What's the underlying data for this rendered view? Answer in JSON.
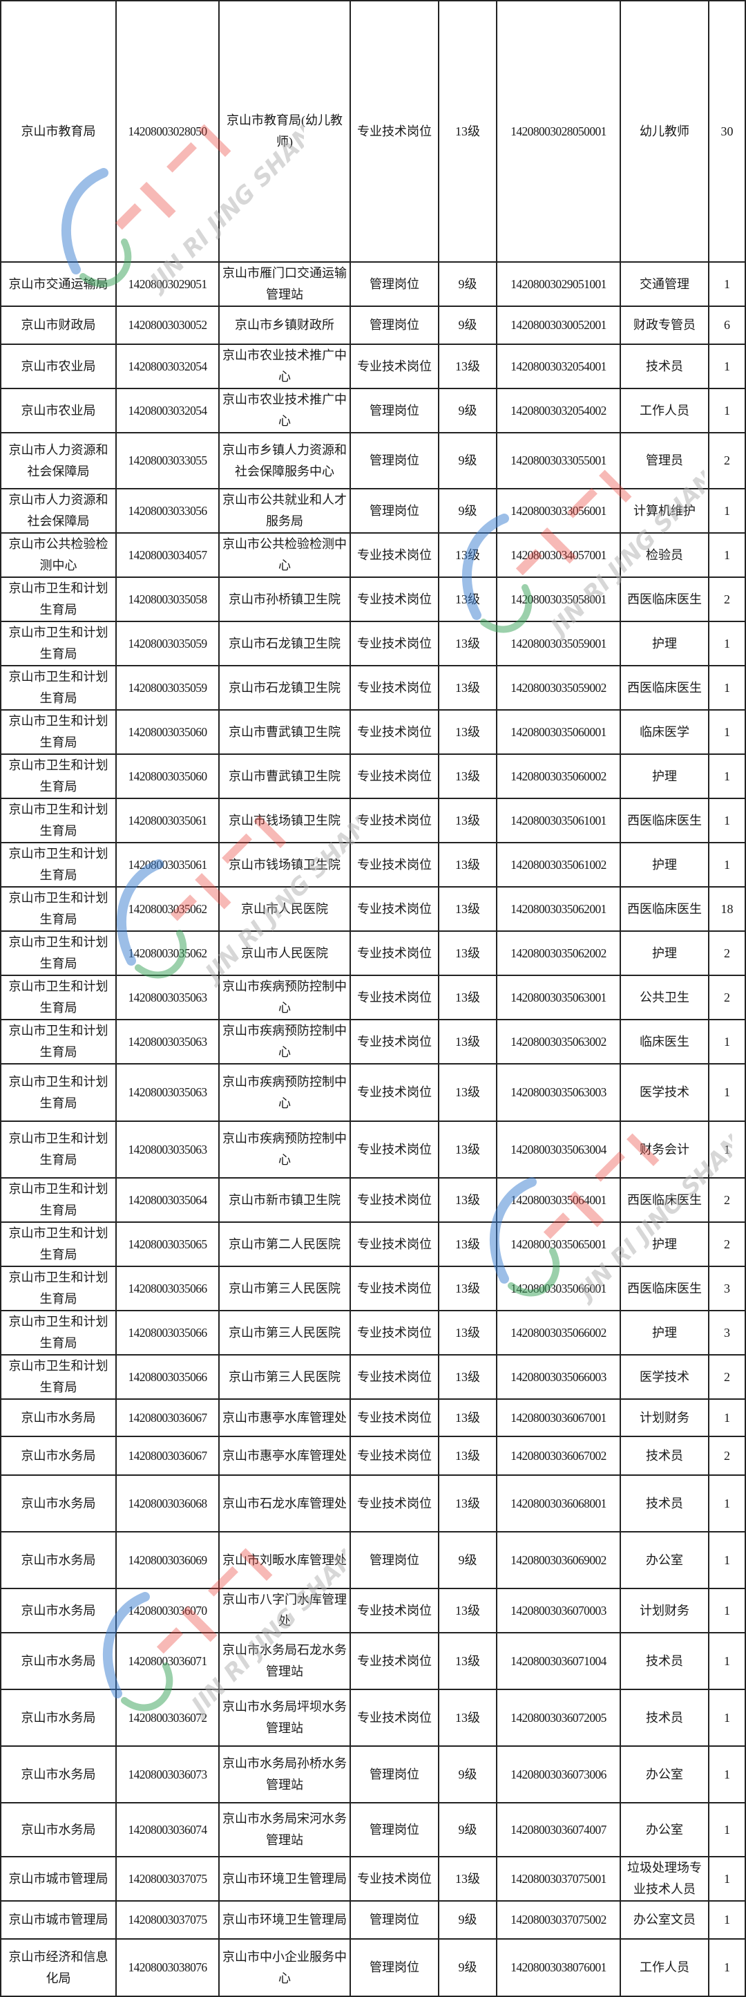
{
  "watermark": {
    "text": "JIN RI JING SHAN",
    "brand_red": "#e8453c",
    "brand_blue": "#3b7fd1",
    "brand_green": "#3aa35a"
  },
  "rows": [
    [
      "京山市教育局",
      "14208003028050",
      "京山市教育局(幼儿教师)",
      "专业技术岗位",
      "13级",
      "14208003028050001",
      "幼儿教师",
      "30"
    ],
    [
      "京山市交通运输局",
      "14208003029051",
      "京山市雁门口交通运输管理站",
      "管理岗位",
      "9级",
      "14208003029051001",
      "交通管理",
      "1"
    ],
    [
      "京山市财政局",
      "14208003030052",
      "京山市乡镇财政所",
      "管理岗位",
      "9级",
      "14208003030052001",
      "财政专管员",
      "6"
    ],
    [
      "京山市农业局",
      "14208003032054",
      "京山市农业技术推广中心",
      "专业技术岗位",
      "13级",
      "14208003032054001",
      "技术员",
      "1"
    ],
    [
      "京山市农业局",
      "14208003032054",
      "京山市农业技术推广中心",
      "管理岗位",
      "9级",
      "14208003032054002",
      "工作人员",
      "1"
    ],
    [
      "京山市人力资源和社会保障局",
      "14208003033055",
      "京山市乡镇人力资源和社会保障服务中心",
      "管理岗位",
      "9级",
      "14208003033055001",
      "管理员",
      "2"
    ],
    [
      "京山市人力资源和社会保障局",
      "14208003033056",
      "京山市公共就业和人才服务局",
      "管理岗位",
      "9级",
      "14208003033056001",
      "计算机维护",
      "1"
    ],
    [
      "京山市公共检验检测中心",
      "14208003034057",
      "京山市公共检验检测中心",
      "专业技术岗位",
      "13级",
      "14208003034057001",
      "检验员",
      "1"
    ],
    [
      "京山市卫生和计划生育局",
      "14208003035058",
      "京山市孙桥镇卫生院",
      "专业技术岗位",
      "13级",
      "14208003035058001",
      "西医临床医生",
      "2"
    ],
    [
      "京山市卫生和计划生育局",
      "14208003035059",
      "京山市石龙镇卫生院",
      "专业技术岗位",
      "13级",
      "14208003035059001",
      "护理",
      "1"
    ],
    [
      "京山市卫生和计划生育局",
      "14208003035059",
      "京山市石龙镇卫生院",
      "专业技术岗位",
      "13级",
      "14208003035059002",
      "西医临床医生",
      "1"
    ],
    [
      "京山市卫生和计划生育局",
      "14208003035060",
      "京山市曹武镇卫生院",
      "专业技术岗位",
      "13级",
      "14208003035060001",
      "临床医学",
      "1"
    ],
    [
      "京山市卫生和计划生育局",
      "14208003035060",
      "京山市曹武镇卫生院",
      "专业技术岗位",
      "13级",
      "14208003035060002",
      "护理",
      "1"
    ],
    [
      "京山市卫生和计划生育局",
      "14208003035061",
      "京山市钱场镇卫生院",
      "专业技术岗位",
      "13级",
      "14208003035061001",
      "西医临床医生",
      "1"
    ],
    [
      "京山市卫生和计划生育局",
      "14208003035061",
      "京山市钱场镇卫生院",
      "专业技术岗位",
      "13级",
      "14208003035061002",
      "护理",
      "1"
    ],
    [
      "京山市卫生和计划生育局",
      "14208003035062",
      "京山市人民医院",
      "专业技术岗位",
      "13级",
      "14208003035062001",
      "西医临床医生",
      "18"
    ],
    [
      "京山市卫生和计划生育局",
      "14208003035062",
      "京山市人民医院",
      "专业技术岗位",
      "13级",
      "14208003035062002",
      "护理",
      "2"
    ],
    [
      "京山市卫生和计划生育局",
      "14208003035063",
      "京山市疾病预防控制中心",
      "专业技术岗位",
      "13级",
      "14208003035063001",
      "公共卫生",
      "2"
    ],
    [
      "京山市卫生和计划生育局",
      "14208003035063",
      "京山市疾病预防控制中心",
      "专业技术岗位",
      "13级",
      "14208003035063002",
      "临床医生",
      "1"
    ],
    [
      "京山市卫生和计划生育局",
      "14208003035063",
      "京山市疾病预防控制中心",
      "专业技术岗位",
      "13级",
      "14208003035063003",
      "医学技术",
      "1"
    ],
    [
      "京山市卫生和计划生育局",
      "14208003035063",
      "京山市疾病预防控制中心",
      "专业技术岗位",
      "13级",
      "14208003035063004",
      "财务会计",
      "1"
    ],
    [
      "京山市卫生和计划生育局",
      "14208003035064",
      "京山市新市镇卫生院",
      "专业技术岗位",
      "13级",
      "14208003035064001",
      "西医临床医生",
      "2"
    ],
    [
      "京山市卫生和计划生育局",
      "14208003035065",
      "京山市第二人民医院",
      "专业技术岗位",
      "13级",
      "14208003035065001",
      "护理",
      "2"
    ],
    [
      "京山市卫生和计划生育局",
      "14208003035066",
      "京山市第三人民医院",
      "专业技术岗位",
      "13级",
      "14208003035066001",
      "西医临床医生",
      "3"
    ],
    [
      "京山市卫生和计划生育局",
      "14208003035066",
      "京山市第三人民医院",
      "专业技术岗位",
      "13级",
      "14208003035066002",
      "护理",
      "3"
    ],
    [
      "京山市卫生和计划生育局",
      "14208003035066",
      "京山市第三人民医院",
      "专业技术岗位",
      "13级",
      "14208003035066003",
      "医学技术",
      "2"
    ],
    [
      "京山市水务局",
      "14208003036067",
      "京山市惠亭水库管理处",
      "专业技术岗位",
      "13级",
      "14208003036067001",
      "计划财务",
      "1"
    ],
    [
      "京山市水务局",
      "14208003036067",
      "京山市惠亭水库管理处",
      "专业技术岗位",
      "13级",
      "14208003036067002",
      "技术员",
      "2"
    ],
    [
      "京山市水务局",
      "14208003036068",
      "京山市石龙水库管理处",
      "专业技术岗位",
      "13级",
      "14208003036068001",
      "技术员",
      "1"
    ],
    [
      "京山市水务局",
      "14208003036069",
      "京山市刘畈水库管理处",
      "管理岗位",
      "9级",
      "14208003036069002",
      "办公室",
      "1"
    ],
    [
      "京山市水务局",
      "14208003036070",
      "京山市八字门水库管理处",
      "专业技术岗位",
      "13级",
      "14208003036070003",
      "计划财务",
      "1"
    ],
    [
      "京山市水务局",
      "14208003036071",
      "京山市水务局石龙水务管理站",
      "专业技术岗位",
      "13级",
      "14208003036071004",
      "技术员",
      "1"
    ],
    [
      "京山市水务局",
      "14208003036072",
      "京山市水务局坪坝水务管理站",
      "专业技术岗位",
      "13级",
      "14208003036072005",
      "技术员",
      "1"
    ],
    [
      "京山市水务局",
      "14208003036073",
      "京山市水务局孙桥水务管理站",
      "管理岗位",
      "9级",
      "14208003036073006",
      "办公室",
      "1"
    ],
    [
      "京山市水务局",
      "14208003036074",
      "京山市水务局宋河水务管理站",
      "管理岗位",
      "9级",
      "14208003036074007",
      "办公室",
      "1"
    ],
    [
      "京山市城市管理局",
      "14208003037075",
      "京山市环境卫生管理局",
      "专业技术岗位",
      "13级",
      "14208003037075001",
      "垃圾处理场专业技术人员",
      "1"
    ],
    [
      "京山市城市管理局",
      "14208003037075",
      "京山市环境卫生管理局",
      "管理岗位",
      "9级",
      "14208003037075002",
      "办公室文员",
      "1"
    ],
    [
      "京山市经济和信息化局",
      "14208003038076",
      "京山市中小企业服务中心",
      "管理岗位",
      "9级",
      "14208003038076001",
      "工作人员",
      "1"
    ]
  ]
}
